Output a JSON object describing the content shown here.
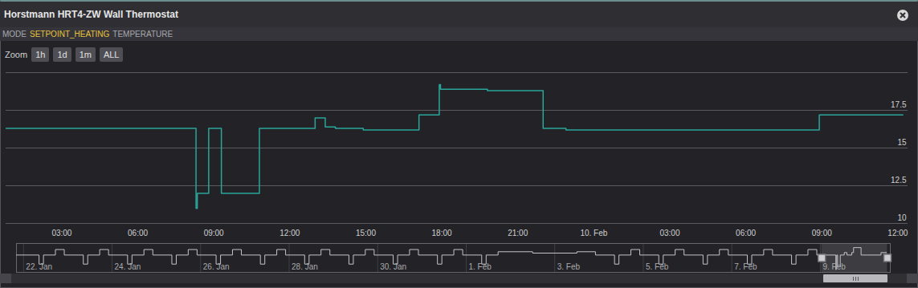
{
  "header": {
    "title": "Horstmann HRT4-ZW Wall Thermostat",
    "tabs": [
      "MODE",
      "SETPOINT_HEATING",
      "TEMPERATURE"
    ],
    "active_tab": "SETPOINT_HEATING",
    "zoom_label": "Zoom",
    "zoom_buttons": [
      "1h",
      "1d",
      "1m",
      "ALL"
    ]
  },
  "chart_data": [
    {
      "type": "line",
      "line_style": "step",
      "color": "#2aa59a",
      "grid": true,
      "x": [
        0.8,
        8.3,
        8.35,
        8.8,
        9.3,
        10.8,
        13.0,
        13.4,
        13.8,
        14.9,
        17.1,
        17.9,
        17.95,
        19.8,
        22.0,
        22.9,
        32.9,
        36.2
      ],
      "values": [
        16.3,
        11.0,
        12.0,
        16.3,
        12.0,
        16.3,
        17.0,
        16.4,
        16.3,
        16.2,
        17.2,
        19.2,
        18.9,
        18.8,
        16.3,
        16.2,
        17.2,
        17.2
      ],
      "xlim": [
        0.8,
        36.4
      ],
      "xticks": [
        {
          "value": 3,
          "label": "03:00"
        },
        {
          "value": 6,
          "label": "06:00"
        },
        {
          "value": 9,
          "label": "09:00"
        },
        {
          "value": 12,
          "label": "12:00"
        },
        {
          "value": 15,
          "label": "15:00"
        },
        {
          "value": 18,
          "label": "18:00"
        },
        {
          "value": 21,
          "label": "21:00"
        },
        {
          "value": 24,
          "label": "10. Feb"
        },
        {
          "value": 27,
          "label": "03:00"
        },
        {
          "value": 30,
          "label": "06:00"
        },
        {
          "value": 33,
          "label": "09:00"
        },
        {
          "value": 36,
          "label": "12:00"
        }
      ],
      "ylim": [
        10,
        20
      ],
      "yticks": [
        10,
        12.5,
        15,
        17.5
      ]
    },
    {
      "type": "line",
      "line_style": "step",
      "color": "#c4c4c8",
      "tick_labels": "x",
      "x": [
        -0.16,
        0.35,
        0.45,
        0.72,
        0.92,
        1.35,
        1.45,
        1.72,
        1.92,
        2.35,
        2.45,
        2.72,
        2.92,
        3.35,
        3.45,
        3.72,
        3.92,
        4.35,
        4.45,
        4.72,
        4.92,
        5.35,
        5.45,
        5.72,
        5.92,
        6.35,
        6.45,
        6.72,
        6.92,
        7.35,
        7.45,
        7.72,
        7.92,
        8.35,
        8.45,
        8.72,
        8.92,
        9.35,
        9.45,
        9.72,
        9.92,
        10.35,
        10.45,
        10.72,
        11.5,
        12.5,
        12.92,
        13.35,
        13.45,
        13.72,
        13.92,
        14.35,
        14.45,
        14.72,
        14.92,
        15.35,
        15.45,
        15.72,
        15.92,
        16.35,
        16.45,
        16.72,
        16.92,
        17.35,
        17.45,
        17.72,
        17.92,
        18.35,
        18.36,
        18.37,
        18.39,
        18.45,
        18.54,
        18.6,
        18.71,
        18.75,
        18.92,
        19.37,
        19.5
      ],
      "values": [
        16.3,
        13,
        16.3,
        18.3,
        16.3,
        13,
        16.3,
        18.3,
        16.3,
        13,
        16.3,
        18.3,
        16.3,
        13,
        16.3,
        18.3,
        16.3,
        13,
        16.3,
        18.3,
        16.3,
        13,
        16.3,
        18.3,
        16.3,
        13,
        16.3,
        18.3,
        16.3,
        13,
        16.3,
        18.3,
        16.3,
        13,
        16.3,
        18.3,
        16.3,
        13,
        16.3,
        18.3,
        16.3,
        13,
        16.3,
        17.5,
        17,
        17.5,
        16.3,
        13,
        16.3,
        18.3,
        16.3,
        13,
        16.3,
        18.3,
        16.3,
        13,
        16.3,
        18.3,
        16.3,
        13,
        16.3,
        18.3,
        16.3,
        13,
        16.3,
        18.3,
        16.3,
        11,
        12,
        16.3,
        12,
        16.3,
        17.2,
        16.3,
        17.2,
        19,
        16.3,
        17.2,
        17.2
      ],
      "xlim": [
        -0.16,
        19.58
      ],
      "xticks": [
        {
          "value": 0,
          "label": "22. Jan"
        },
        {
          "value": 2,
          "label": "24. Jan"
        },
        {
          "value": 4,
          "label": "26. Jan"
        },
        {
          "value": 6,
          "label": "28. Jan"
        },
        {
          "value": 8,
          "label": "30. Jan"
        },
        {
          "value": 10,
          "label": "1. Feb"
        },
        {
          "value": 12,
          "label": "3. Feb"
        },
        {
          "value": 14,
          "label": "5. Feb"
        },
        {
          "value": 16,
          "label": "7. Feb"
        },
        {
          "value": 18,
          "label": "9. Feb"
        }
      ],
      "ylim": [
        10,
        20.5
      ]
    }
  ]
}
